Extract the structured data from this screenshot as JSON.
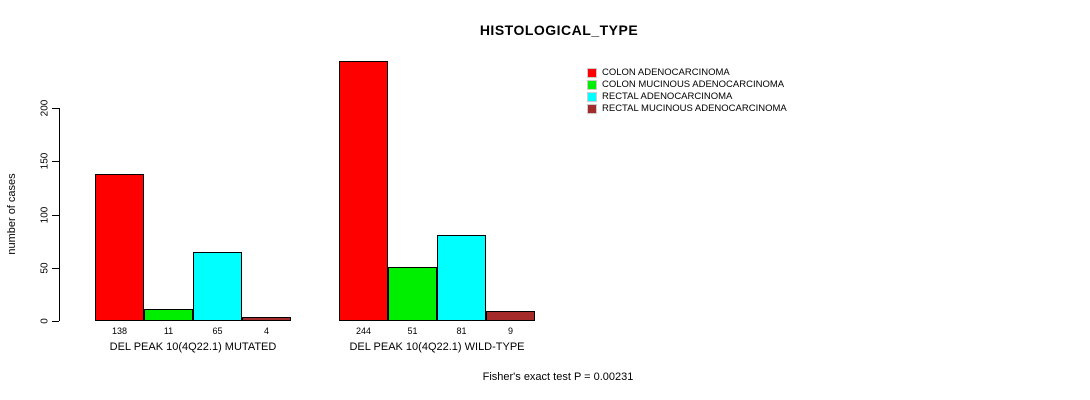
{
  "title": "HISTOLOGICAL_TYPE",
  "ylabel": "number of cases",
  "footer": "Fisher's exact test P = 0.00231",
  "legend": [
    {
      "label": "COLON ADENOCARCINOMA",
      "color": "#ff0000"
    },
    {
      "label": "COLON MUCINOUS ADENOCARCINOMA",
      "color": "#00ee00"
    },
    {
      "label": "RECTAL ADENOCARCINOMA",
      "color": "#00ffff"
    },
    {
      "label": "RECTAL MUCINOUS ADENOCARCINOMA",
      "color": "#a52a2a"
    }
  ],
  "chart_data": {
    "type": "bar",
    "title": "HISTOLOGICAL_TYPE",
    "xlabel": "",
    "ylabel": "number of cases",
    "categories": [
      "DEL PEAK 10(4Q22.1) MUTATED",
      "DEL PEAK 10(4Q22.1) WILD-TYPE"
    ],
    "series": [
      {
        "name": "COLON ADENOCARCINOMA",
        "color": "#ff0000",
        "values": [
          138,
          244
        ]
      },
      {
        "name": "COLON MUCINOUS ADENOCARCINOMA",
        "color": "#00ee00",
        "values": [
          11,
          51
        ]
      },
      {
        "name": "RECTAL ADENOCARCINOMA",
        "color": "#00ffff",
        "values": [
          65,
          81
        ]
      },
      {
        "name": "RECTAL MUCINOUS ADENOCARCINOMA",
        "color": "#a52a2a",
        "values": [
          4,
          9
        ]
      }
    ],
    "bar_labels": [
      [
        138,
        11,
        65,
        4
      ],
      [
        244,
        51,
        81,
        9
      ]
    ],
    "yticks": [
      0,
      50,
      100,
      150,
      200
    ],
    "ylim": [
      0,
      250
    ],
    "grid": false,
    "legend_position": "top-right",
    "annotation": "Fisher's exact test P = 0.00231"
  }
}
